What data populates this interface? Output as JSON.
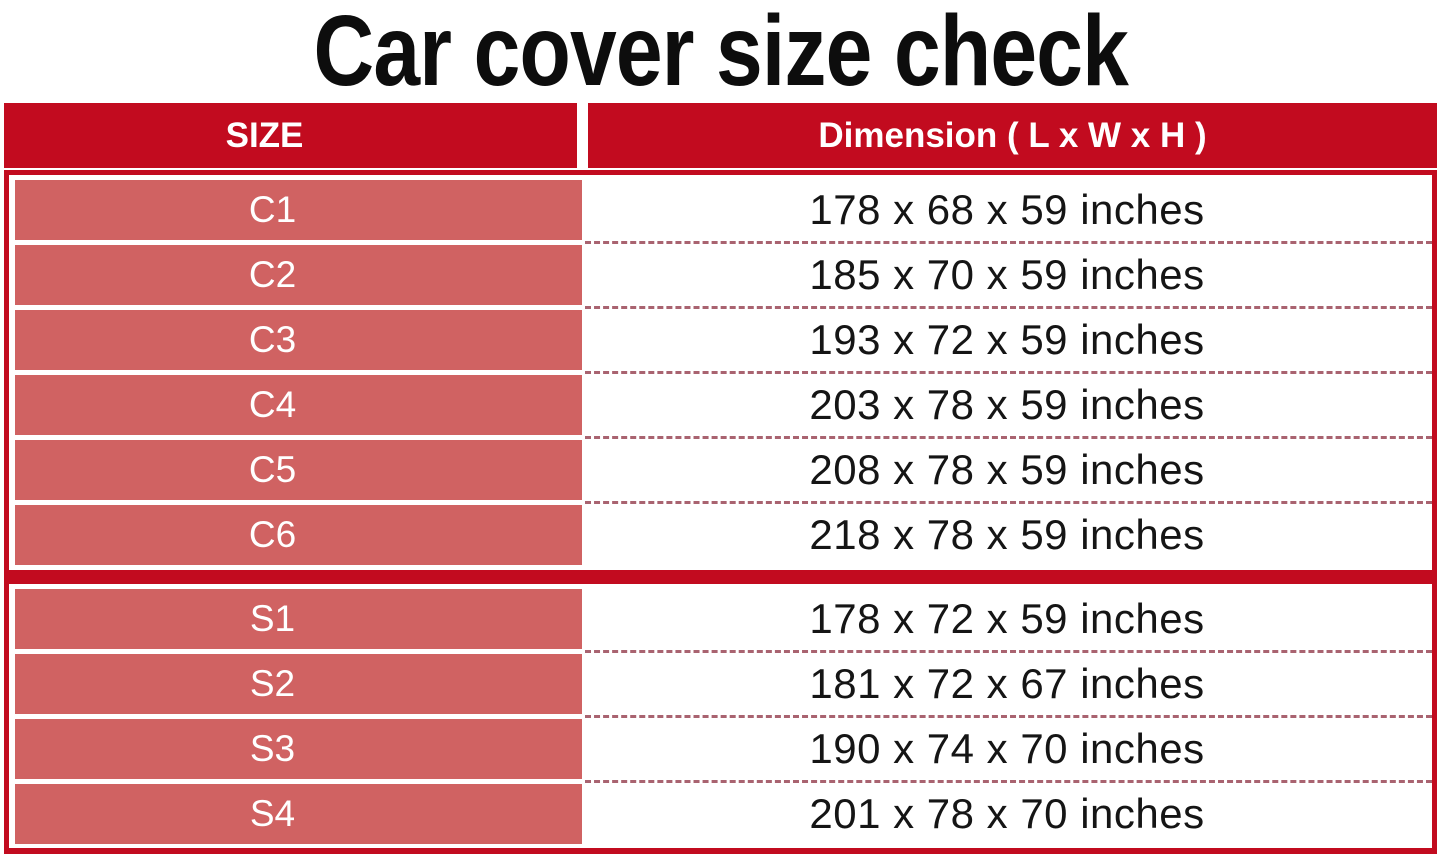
{
  "title": "Car cover size check",
  "header": {
    "size_label": "SIZE",
    "dimension_label": "Dimension ( L x W x H )"
  },
  "chart_data": {
    "type": "table",
    "title": "Car cover size check",
    "columns": [
      "SIZE",
      "Dimension ( L x W x H )"
    ],
    "sections": [
      {
        "rows": [
          {
            "size": "C1",
            "dimension": "178 x 68 x 59 inches"
          },
          {
            "size": "C2",
            "dimension": "185 x 70 x 59 inches"
          },
          {
            "size": "C3",
            "dimension": "193 x 72 x 59 inches"
          },
          {
            "size": "C4",
            "dimension": "203 x 78 x 59 inches"
          },
          {
            "size": "C5",
            "dimension": "208 x 78 x 59 inches"
          },
          {
            "size": "C6",
            "dimension": "218 x 78 x 59 inches"
          }
        ]
      },
      {
        "rows": [
          {
            "size": "S1",
            "dimension": "178 x 72 x 59 inches"
          },
          {
            "size": "S2",
            "dimension": "181 x 72 x 67 inches"
          },
          {
            "size": "S3",
            "dimension": "190 x 74 x 70 inches"
          },
          {
            "size": "S4",
            "dimension": "201 x 78 x 70 inches"
          }
        ]
      }
    ],
    "dimensions_inches": {
      "C1": [
        178,
        68,
        59
      ],
      "C2": [
        185,
        70,
        59
      ],
      "C3": [
        193,
        72,
        59
      ],
      "C4": [
        203,
        78,
        59
      ],
      "C5": [
        208,
        78,
        59
      ],
      "C6": [
        218,
        78,
        59
      ],
      "S1": [
        178,
        72,
        59
      ],
      "S2": [
        181,
        72,
        67
      ],
      "S3": [
        190,
        74,
        70
      ],
      "S4": [
        201,
        78,
        70
      ]
    }
  },
  "colors": {
    "header_red": "#c20b1f",
    "cell_salmon": "#d06262",
    "dash": "#a96370",
    "title_text": "#0d0d0d",
    "value_text": "#151515"
  }
}
